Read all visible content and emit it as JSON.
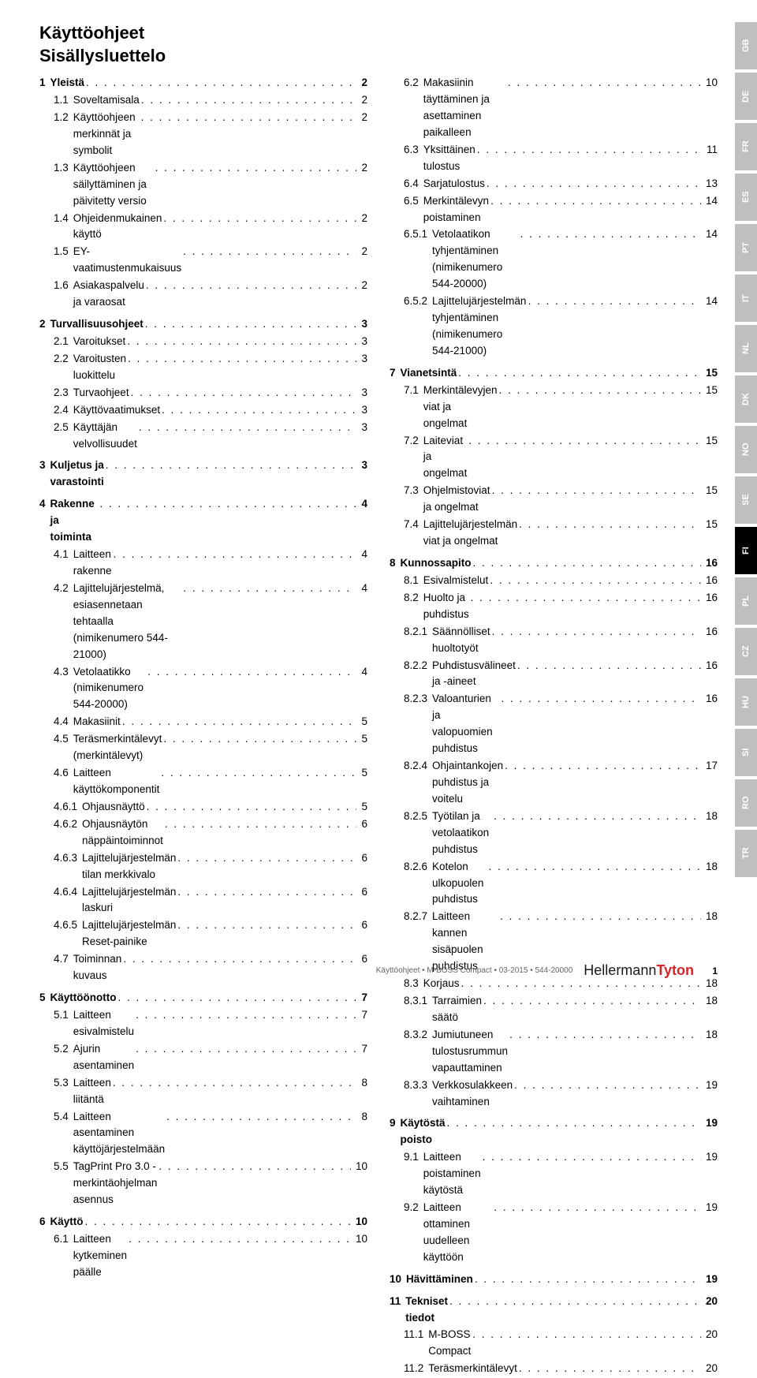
{
  "title_line1": "Käyttöohjeet",
  "title_line2": "Sisällysluettelo",
  "langs": [
    "GB",
    "DE",
    "FR",
    "ES",
    "PT",
    "IT",
    "NL",
    "DK",
    "NO",
    "SE",
    "FI",
    "PL",
    "CZ",
    "HU",
    "SI",
    "RO",
    "TR"
  ],
  "active_lang": "FI",
  "col1": [
    {
      "n": "1",
      "t": "Yleistä",
      "p": "2",
      "b": 1
    },
    {
      "n": "1.1",
      "t": "Soveltamisala",
      "p": "2",
      "i": 1
    },
    {
      "n": "1.2",
      "t": "Käyttöohjeen merkinnät ja symbolit",
      "p": "2",
      "i": 1
    },
    {
      "n": "1.3",
      "t": "Käyttöohjeen säilyttäminen ja päivitetty versio",
      "p": "2",
      "i": 1
    },
    {
      "n": "1.4",
      "t": "Ohjeidenmukainen käyttö",
      "p": "2",
      "i": 1
    },
    {
      "n": "1.5",
      "t": "EY-vaatimustenmukaisuus",
      "p": "2",
      "i": 1
    },
    {
      "n": "1.6",
      "t": "Asiakaspalvelu ja varaosat",
      "p": "2",
      "i": 1
    },
    {
      "gap": 1
    },
    {
      "n": "2",
      "t": "Turvallisuusohjeet",
      "p": "3",
      "b": 1
    },
    {
      "n": "2.1",
      "t": "Varoitukset",
      "p": "3",
      "i": 1
    },
    {
      "n": "2.2",
      "t": "Varoitusten luokittelu",
      "p": "3",
      "i": 1
    },
    {
      "n": "2.3",
      "t": "Turvaohjeet",
      "p": "3",
      "i": 1
    },
    {
      "n": "2.4",
      "t": "Käyttövaatimukset",
      "p": "3",
      "i": 1
    },
    {
      "n": "2.5",
      "t": "Käyttäjän velvollisuudet",
      "p": "3",
      "i": 1
    },
    {
      "gap": 1
    },
    {
      "n": "3",
      "t": "Kuljetus ja varastointi",
      "p": "3",
      "b": 1
    },
    {
      "gap": 1
    },
    {
      "n": "4",
      "t": "Rakenne ja toiminta",
      "p": "4",
      "b": 1
    },
    {
      "n": "4.1",
      "t": "Laitteen rakenne",
      "p": "4",
      "i": 1
    },
    {
      "n": "4.2",
      "t": "Lajittelujärjestelmä, esiasennetaan tehtaalla (nimikenumero 544-21000)",
      "p": "4",
      "i": 1
    },
    {
      "n": "4.3",
      "t": "Vetolaatikko (nimikenumero 544-20000)",
      "p": "4",
      "i": 1
    },
    {
      "n": "4.4",
      "t": "Makasiinit",
      "p": "5",
      "i": 1
    },
    {
      "n": "4.5",
      "t": "Teräsmerkintälevyt (merkintälevyt)",
      "p": "5",
      "i": 1
    },
    {
      "n": "4.6",
      "t": "Laitteen käyttökomponentit",
      "p": "5",
      "i": 1
    },
    {
      "n": "4.6.1",
      "t": "Ohjausnäyttö",
      "p": "5",
      "i": 1
    },
    {
      "n": "4.6.2",
      "t": "Ohjausnäytön näppäintoiminnot",
      "p": "6",
      "i": 1
    },
    {
      "n": "4.6.3",
      "t": "Lajittelujärjestelmän tilan merkkivalo",
      "p": "6",
      "i": 1
    },
    {
      "n": "4.6.4",
      "t": "Lajittelujärjestelmän laskuri",
      "p": "6",
      "i": 1
    },
    {
      "n": "4.6.5",
      "t": "Lajittelujärjestelmän Reset-painike",
      "p": "6",
      "i": 1
    },
    {
      "n": "4.7",
      "t": "Toiminnan kuvaus",
      "p": "6",
      "i": 1
    },
    {
      "gap": 1
    },
    {
      "n": "5",
      "t": "Käyttöönotto",
      "p": "7",
      "b": 1
    },
    {
      "n": "5.1",
      "t": "Laitteen esivalmistelu",
      "p": "7",
      "i": 1
    },
    {
      "n": "5.2",
      "t": "Ajurin asentaminen",
      "p": "7",
      "i": 1
    },
    {
      "n": "5.3",
      "t": "Laitteen liitäntä",
      "p": "8",
      "i": 1
    },
    {
      "n": "5.4",
      "t": "Laitteen asentaminen käyttöjärjestelmään",
      "p": "8",
      "i": 1
    },
    {
      "n": "5.5",
      "t": "TagPrint Pro 3.0 -merkintäohjelman asennus",
      "p": "10",
      "i": 1
    },
    {
      "gap": 1
    },
    {
      "n": "6",
      "t": "Käyttö",
      "p": "10",
      "b": 1
    },
    {
      "n": "6.1",
      "t": "Laitteen kytkeminen päälle",
      "p": "10",
      "i": 1
    }
  ],
  "col2": [
    {
      "n": "6.2",
      "t": "Makasiinin täyttäminen ja asettaminen paikalleen",
      "p": "10",
      "i": 1
    },
    {
      "n": "6.3",
      "t": "Yksittäinen tulostus",
      "p": "11",
      "i": 1
    },
    {
      "n": "6.4",
      "t": "Sarjatulostus",
      "p": "13",
      "i": 1
    },
    {
      "n": "6.5",
      "t": "Merkintälevyn poistaminen",
      "p": "14",
      "i": 1
    },
    {
      "n": "6.5.1",
      "t": "Vetolaatikon tyhjentäminen (nimikenumero 544-20000)",
      "p": "14",
      "i": 1
    },
    {
      "n": "6.5.2",
      "t": "Lajittelujärjestelmän tyhjentäminen (nimikenumero 544-21000)",
      "p": "14",
      "i": 1
    },
    {
      "gap": 1
    },
    {
      "n": "7",
      "t": "Vianetsintä",
      "p": "15",
      "b": 1
    },
    {
      "n": "7.1",
      "t": "Merkintälevyjen viat ja ongelmat",
      "p": "15",
      "i": 1
    },
    {
      "n": "7.2",
      "t": "Laiteviat ja ongelmat",
      "p": "15",
      "i": 1
    },
    {
      "n": "7.3",
      "t": "Ohjelmistoviat ja ongelmat",
      "p": "15",
      "i": 1
    },
    {
      "n": "7.4",
      "t": "Lajittelujärjestelmän viat ja ongelmat",
      "p": "15",
      "i": 1
    },
    {
      "gap": 1
    },
    {
      "n": "8",
      "t": "Kunnossapito",
      "p": "16",
      "b": 1
    },
    {
      "n": "8.1",
      "t": "Esivalmistelut",
      "p": "16",
      "i": 1
    },
    {
      "n": "8.2",
      "t": "Huolto ja puhdistus",
      "p": "16",
      "i": 1
    },
    {
      "n": "8.2.1",
      "t": "Säännölliset huoltotyöt",
      "p": "16",
      "i": 1
    },
    {
      "n": "8.2.2",
      "t": "Puhdistusvälineet ja -aineet",
      "p": "16",
      "i": 1
    },
    {
      "n": "8.2.3",
      "t": "Valoanturien ja valopuomien puhdistus",
      "p": "16",
      "i": 1
    },
    {
      "n": "8.2.4",
      "t": "Ohjaintankojen puhdistus ja voitelu",
      "p": "17",
      "i": 1
    },
    {
      "n": "8.2.5",
      "t": "Työtilan ja vetolaatikon puhdistus",
      "p": "18",
      "i": 1
    },
    {
      "n": "8.2.6",
      "t": "Kotelon ulkopuolen puhdistus",
      "p": "18",
      "i": 1
    },
    {
      "n": "8.2.7",
      "t": "Laitteen kannen sisäpuolen puhdistus",
      "p": "18",
      "i": 1
    },
    {
      "n": "8.3",
      "t": "Korjaus",
      "p": "18",
      "i": 1
    },
    {
      "n": "8.3.1",
      "t": "Tarraimien säätö",
      "p": "18",
      "i": 1
    },
    {
      "n": "8.3.2",
      "t": "Jumiutuneen tulostusrummun vapauttaminen",
      "p": "18",
      "i": 1
    },
    {
      "n": "8.3.3",
      "t": "Verkkosulakkeen vaihtaminen",
      "p": "19",
      "i": 1
    },
    {
      "gap": 1
    },
    {
      "n": "9",
      "t": "Käytöstä poisto",
      "p": "19",
      "b": 1
    },
    {
      "n": "9.1",
      "t": "Laitteen poistaminen käytöstä",
      "p": "19",
      "i": 1
    },
    {
      "n": "9.2",
      "t": "Laitteen ottaminen uudelleen käyttöön",
      "p": "19",
      "i": 1
    },
    {
      "gap": 1
    },
    {
      "n": "10",
      "t": "Hävittäminen",
      "p": "19",
      "b": 1
    },
    {
      "gap": 1
    },
    {
      "n": "11",
      "t": "Tekniset tiedot",
      "p": "20",
      "b": 1
    },
    {
      "n": "11.1",
      "t": "M-BOSS Compact",
      "p": "20",
      "i": 1
    },
    {
      "n": "11.2",
      "t": "Teräsmerkintälevyt",
      "p": "20",
      "i": 1
    }
  ],
  "footer_text": "Käyttöohjeet • M-BOSS Compact • 03-2015 • 544-20000",
  "footer_logo1": "Hellermann",
  "footer_logo2": "Tyton",
  "footer_page": "1"
}
